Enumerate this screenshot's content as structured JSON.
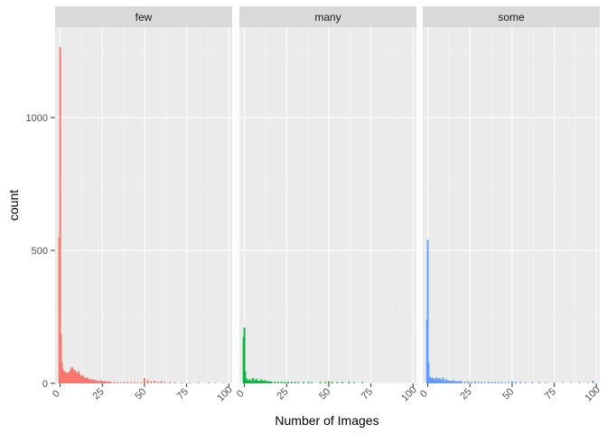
{
  "chart_data": {
    "type": "bar",
    "title": "",
    "xlabel": "Number of Images",
    "ylabel": "count",
    "xlim": [
      -3,
      102
    ],
    "ylim": [
      0,
      1340
    ],
    "x_ticks": [
      0,
      25,
      50,
      75,
      100
    ],
    "y_ticks": [
      0,
      500,
      1000
    ],
    "grid": true,
    "legend": "none",
    "panels": [
      {
        "name": "few",
        "color": "#F8766D",
        "x": [
          -0.5,
          0,
          0.5,
          1,
          1.5,
          2,
          2.5,
          3,
          3.5,
          4,
          4.5,
          5,
          5.5,
          6,
          6.5,
          7,
          7.5,
          8,
          8.5,
          9,
          9.5,
          10,
          10.5,
          11,
          11.5,
          12,
          12.5,
          13,
          13.5,
          14,
          14.5,
          15,
          15.5,
          16,
          16.5,
          17,
          17.5,
          18,
          18.5,
          19,
          19.5,
          20,
          21,
          22,
          23,
          24,
          25,
          26,
          27,
          28,
          29,
          30,
          32,
          34,
          36,
          38,
          40,
          42,
          44,
          46,
          48,
          50,
          52,
          54,
          56,
          58,
          60,
          62,
          65,
          68,
          72,
          77,
          82,
          88,
          92,
          97
        ],
        "values": [
          550,
          1265,
          185,
          80,
          55,
          45,
          40,
          45,
          38,
          35,
          42,
          38,
          40,
          48,
          55,
          62,
          55,
          50,
          45,
          48,
          42,
          38,
          40,
          45,
          35,
          30,
          28,
          25,
          30,
          22,
          20,
          18,
          22,
          18,
          20,
          15,
          14,
          12,
          16,
          12,
          10,
          15,
          12,
          10,
          8,
          12,
          10,
          8,
          9,
          6,
          8,
          6,
          5,
          5,
          4,
          6,
          5,
          4,
          5,
          4,
          3,
          20,
          12,
          8,
          10,
          6,
          8,
          5,
          4,
          4,
          3,
          3,
          3,
          3,
          2,
          2
        ]
      },
      {
        "name": "many",
        "color": "#00BA38",
        "x": [
          -0.5,
          0,
          0.5,
          1,
          1.5,
          2,
          2.5,
          3,
          3.5,
          4,
          5,
          6,
          7,
          8,
          9,
          10,
          11,
          12,
          13,
          14,
          15,
          16,
          18,
          20,
          22,
          24,
          26,
          28,
          30,
          32,
          35,
          38,
          40,
          45,
          48,
          50,
          52,
          55,
          58,
          62,
          65,
          70
        ],
        "values": [
          175,
          210,
          45,
          20,
          15,
          12,
          10,
          12,
          15,
          8,
          20,
          12,
          18,
          10,
          10,
          15,
          10,
          12,
          8,
          9,
          7,
          7,
          6,
          6,
          6,
          6,
          6,
          5,
          5,
          5,
          5,
          5,
          5,
          5,
          5,
          8,
          6,
          5,
          5,
          5,
          4,
          4
        ]
      },
      {
        "name": "some",
        "color": "#619CFF",
        "x": [
          -0.5,
          0,
          0.5,
          1,
          1.5,
          2,
          2.5,
          3,
          3.5,
          4,
          5,
          6,
          7,
          8,
          9,
          10,
          11,
          12,
          13,
          14,
          15,
          16,
          17,
          18,
          19,
          20,
          22,
          24,
          26,
          28,
          30,
          32,
          34,
          36,
          38,
          40,
          42,
          44,
          46,
          48,
          50,
          52,
          55,
          58,
          62,
          66,
          70,
          75,
          80,
          85,
          90,
          95,
          98
        ],
        "values": [
          240,
          540,
          75,
          25,
          20,
          22,
          18,
          20,
          18,
          15,
          22,
          18,
          20,
          15,
          22,
          12,
          15,
          12,
          10,
          10,
          12,
          9,
          8,
          8,
          9,
          8,
          7,
          8,
          6,
          7,
          6,
          6,
          5,
          6,
          5,
          6,
          5,
          5,
          4,
          5,
          8,
          6,
          5,
          4,
          5,
          4,
          3,
          3,
          2,
          2,
          3,
          2,
          10
        ]
      }
    ]
  }
}
